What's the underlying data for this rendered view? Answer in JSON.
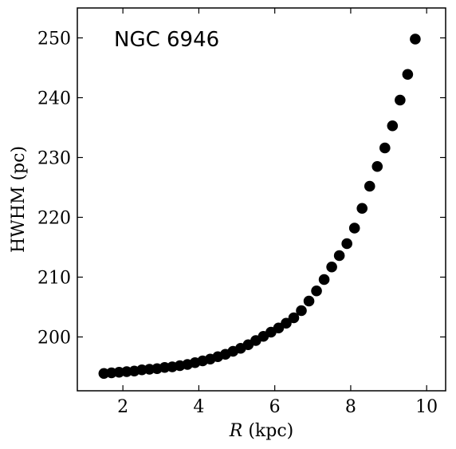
{
  "chart_data": {
    "type": "scatter",
    "annotation": "NGC 6946",
    "xlabel_var": "R",
    "xlabel_unit": " (kpc)",
    "ylabel": "HWHM (pc)",
    "xlim": [
      0.8,
      10.5
    ],
    "ylim": [
      191,
      255
    ],
    "x_ticks": [
      2,
      4,
      6,
      8,
      10
    ],
    "y_ticks": [
      200,
      210,
      220,
      230,
      240,
      250
    ],
    "marker_color": "#000000",
    "series": [
      {
        "x": [
          1.5,
          1.7,
          1.9,
          2.1,
          2.3,
          2.5,
          2.7,
          2.9,
          3.1,
          3.3,
          3.5,
          3.7,
          3.9,
          4.1,
          4.3,
          4.5,
          4.7,
          4.9,
          5.1,
          5.3,
          5.5,
          5.7,
          5.9,
          6.1,
          6.3,
          6.5,
          6.7,
          6.9,
          7.1,
          7.3,
          7.5,
          7.7,
          7.9,
          8.1,
          8.3,
          8.5,
          8.7,
          8.9,
          9.1,
          9.3,
          9.5,
          9.7
        ],
        "y": [
          193.9,
          194.0,
          194.1,
          194.2,
          194.3,
          194.5,
          194.6,
          194.7,
          194.9,
          195.0,
          195.2,
          195.4,
          195.7,
          196.0,
          196.3,
          196.7,
          197.1,
          197.6,
          198.1,
          198.7,
          199.4,
          200.1,
          200.8,
          201.5,
          202.3,
          203.2,
          204.4,
          206.0,
          207.7,
          209.6,
          211.7,
          213.6,
          215.6,
          218.2,
          221.5,
          225.2,
          228.5,
          231.6,
          235.3,
          239.6,
          243.9,
          249.8
        ]
      }
    ]
  }
}
